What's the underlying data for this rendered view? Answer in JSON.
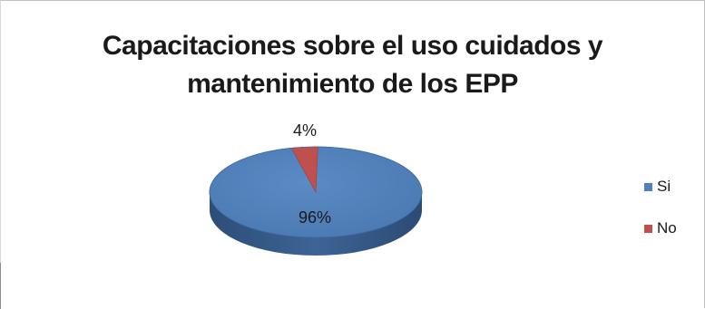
{
  "chart_data": {
    "type": "pie",
    "title_lines": [
      "Capacitaciones sobre el uso cuidados y",
      "mantenimiento de los EPP"
    ],
    "categories": [
      "Si",
      "No"
    ],
    "values": [
      96,
      4
    ],
    "value_labels": [
      "96%",
      "4%"
    ],
    "colors": [
      "#4f81bd",
      "#c0504d"
    ],
    "legend_position": "right",
    "style": "3d"
  }
}
